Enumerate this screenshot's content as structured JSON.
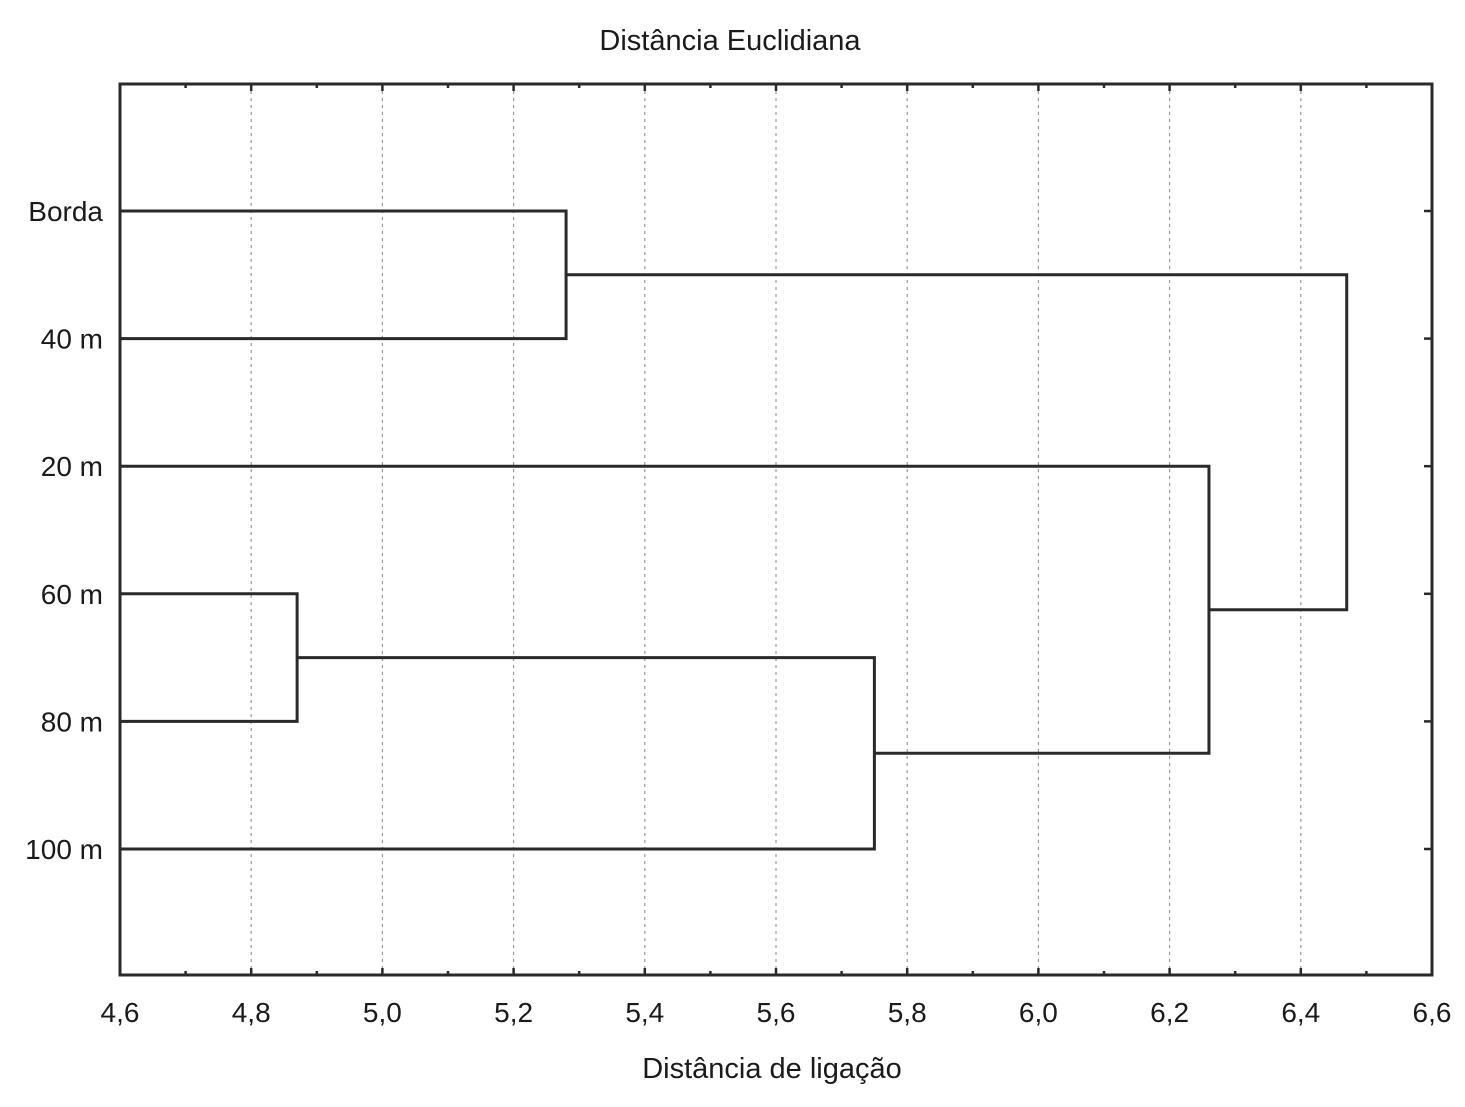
{
  "chart_data": {
    "type": "dendrogram",
    "title": "Distância Euclidiana",
    "xlabel": "Distância de ligação",
    "xlim": [
      4.6,
      6.6
    ],
    "x_ticks": [
      4.6,
      4.8,
      5.0,
      5.2,
      5.4,
      5.6,
      5.8,
      6.0,
      6.2,
      6.4,
      6.6
    ],
    "x_tick_labels": [
      "4,6",
      "4,8",
      "5,0",
      "5,2",
      "5,4",
      "5,6",
      "5,8",
      "6,0",
      "6,2",
      "6,4",
      "6,6"
    ],
    "grid": true,
    "leaves": [
      "Borda",
      "40 m",
      "20 m",
      "60 m",
      "80 m",
      "100 m"
    ],
    "merges": [
      {
        "left": "60 m",
        "right": "80 m",
        "distance": 4.87
      },
      {
        "left": "Borda",
        "right": "40 m",
        "distance": 5.28
      },
      {
        "left": "60 m + 80 m",
        "right": "100 m",
        "distance": 5.75
      },
      {
        "left": "20 m",
        "right": "60 m + 80 m + 100 m",
        "distance": 6.26
      },
      {
        "left": "Borda + 40 m",
        "right": "20 m + 60 m + 80 m + 100 m",
        "distance": 6.47
      }
    ]
  }
}
